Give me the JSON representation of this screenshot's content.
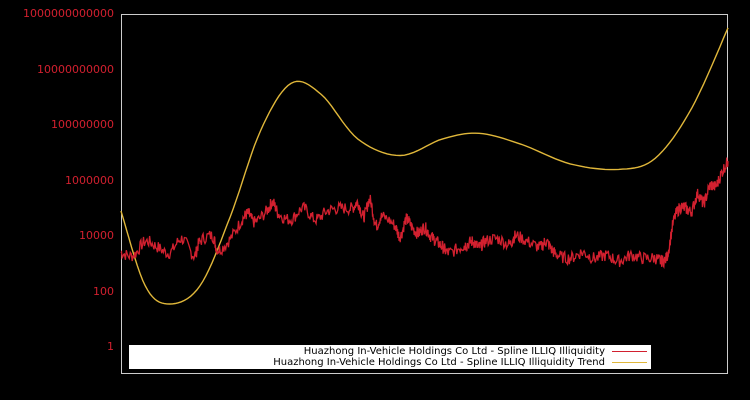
{
  "chart_data": {
    "type": "line",
    "title": "",
    "xlabel": "",
    "ylabel": "",
    "yscale": "log",
    "ylim": [
      1,
      1000000000000
    ],
    "yticks": [
      "1",
      "100",
      "10000",
      "1000000",
      "100000000",
      "10000000000",
      "1000000000000"
    ],
    "xticks": [],
    "grid": false,
    "legend_position": "bottom-inside",
    "background": "#000000",
    "axis_color": "#cccccc",
    "tick_label_color": "#d2202f",
    "series": [
      {
        "name": "Huazhong In-Vehicle Holdings Co Ltd - Spline ILLIQ Illiquidity",
        "color": "#d2202f",
        "approx_log10_values_by_x_fraction": [
          [
            0.0,
            3.4
          ],
          [
            0.02,
            3.3
          ],
          [
            0.04,
            3.8
          ],
          [
            0.06,
            3.6
          ],
          [
            0.08,
            3.4
          ],
          [
            0.1,
            3.9
          ],
          [
            0.12,
            3.3
          ],
          [
            0.13,
            3.8
          ],
          [
            0.15,
            4.0
          ],
          [
            0.16,
            3.5
          ],
          [
            0.18,
            3.9
          ],
          [
            0.2,
            4.6
          ],
          [
            0.21,
            4.8
          ],
          [
            0.22,
            4.5
          ],
          [
            0.24,
            4.9
          ],
          [
            0.25,
            5.2
          ],
          [
            0.26,
            4.8
          ],
          [
            0.28,
            4.6
          ],
          [
            0.3,
            5.0
          ],
          [
            0.32,
            4.6
          ],
          [
            0.34,
            4.9
          ],
          [
            0.36,
            5.0
          ],
          [
            0.38,
            5.0
          ],
          [
            0.39,
            5.2
          ],
          [
            0.4,
            4.7
          ],
          [
            0.41,
            5.3
          ],
          [
            0.42,
            4.4
          ],
          [
            0.43,
            4.7
          ],
          [
            0.45,
            4.4
          ],
          [
            0.46,
            4.0
          ],
          [
            0.47,
            4.6
          ],
          [
            0.48,
            4.3
          ],
          [
            0.49,
            4.1
          ],
          [
            0.5,
            4.3
          ],
          [
            0.51,
            4.0
          ],
          [
            0.52,
            3.8
          ],
          [
            0.53,
            3.6
          ],
          [
            0.54,
            3.4
          ],
          [
            0.56,
            3.6
          ],
          [
            0.57,
            3.7
          ],
          [
            0.58,
            3.8
          ],
          [
            0.59,
            3.6
          ],
          [
            0.6,
            3.8
          ],
          [
            0.62,
            3.9
          ],
          [
            0.64,
            3.7
          ],
          [
            0.65,
            4.0
          ],
          [
            0.67,
            3.8
          ],
          [
            0.69,
            3.6
          ],
          [
            0.7,
            3.8
          ],
          [
            0.71,
            3.5
          ],
          [
            0.72,
            3.3
          ],
          [
            0.74,
            3.2
          ],
          [
            0.76,
            3.4
          ],
          [
            0.78,
            3.2
          ],
          [
            0.8,
            3.3
          ],
          [
            0.82,
            3.1
          ],
          [
            0.84,
            3.3
          ],
          [
            0.86,
            3.2
          ],
          [
            0.88,
            3.2
          ],
          [
            0.89,
            3.1
          ],
          [
            0.9,
            3.3
          ],
          [
            0.91,
            4.5
          ],
          [
            0.92,
            5.0
          ],
          [
            0.93,
            5.0
          ],
          [
            0.94,
            4.9
          ],
          [
            0.95,
            5.5
          ],
          [
            0.96,
            5.2
          ],
          [
            0.97,
            5.8
          ],
          [
            0.98,
            5.8
          ],
          [
            0.99,
            6.3
          ],
          [
            1.0,
            6.7
          ]
        ]
      },
      {
        "name": "Huazhong In-Vehicle Holdings Co Ltd - Spline ILLIQ Illiquidity Trend",
        "color": "#e0b73a",
        "approx_log10_values_by_x_fraction": [
          [
            0.0,
            4.9
          ],
          [
            0.04,
            2.2
          ],
          [
            0.08,
            1.55
          ],
          [
            0.13,
            2.2
          ],
          [
            0.18,
            4.7
          ],
          [
            0.23,
            7.8
          ],
          [
            0.28,
            9.5
          ],
          [
            0.33,
            9.1
          ],
          [
            0.39,
            7.5
          ],
          [
            0.46,
            6.9
          ],
          [
            0.53,
            7.5
          ],
          [
            0.59,
            7.7
          ],
          [
            0.66,
            7.3
          ],
          [
            0.74,
            6.6
          ],
          [
            0.82,
            6.4
          ],
          [
            0.88,
            6.8
          ],
          [
            0.94,
            8.6
          ],
          [
            1.0,
            11.5
          ]
        ]
      }
    ]
  },
  "legend": {
    "items": [
      {
        "label": "Huazhong In-Vehicle Holdings Co Ltd - Spline ILLIQ Illiquidity",
        "color": "#d2202f"
      },
      {
        "label": "Huazhong In-Vehicle Holdings Co Ltd - Spline ILLIQ Illiquidity Trend",
        "color": "#e0b73a"
      }
    ]
  }
}
